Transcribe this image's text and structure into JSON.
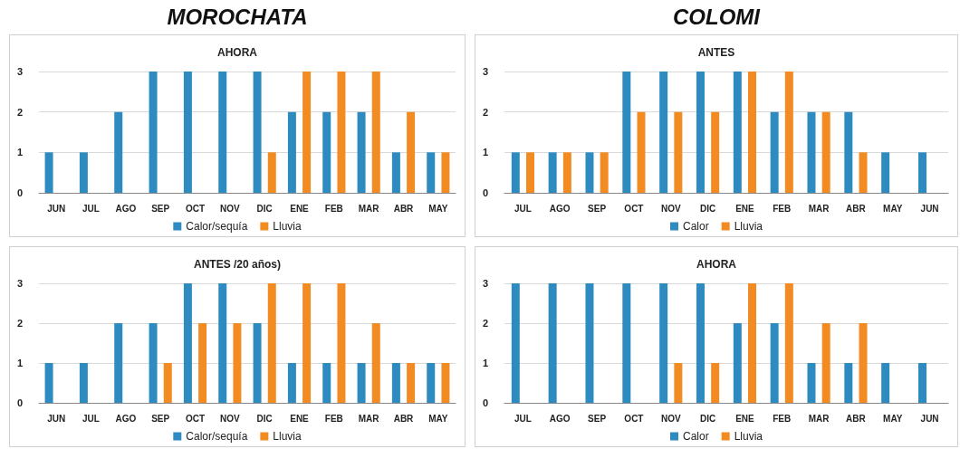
{
  "chart_data": [
    {
      "type": "bar",
      "title": "AHORA",
      "annotations": [
        "MOROCHATA"
      ],
      "categories": [
        "JUN",
        "JUL",
        "AGO",
        "SEP",
        "OCT",
        "NOV",
        "DIC",
        "ENE",
        "FEB",
        "MAR",
        "ABR",
        "MAY"
      ],
      "series": [
        {
          "name": "Calor/sequía",
          "color": "#2e8bc0",
          "values": [
            1,
            1,
            2,
            3,
            3,
            3,
            3,
            2,
            2,
            2,
            1,
            1
          ]
        },
        {
          "name": "Lluvia",
          "color": "#f28b22",
          "values": [
            null,
            null,
            null,
            null,
            null,
            null,
            1,
            3,
            3,
            3,
            2,
            1
          ]
        }
      ],
      "ylim": [
        0,
        3
      ],
      "yticks": [
        0,
        1,
        2,
        3
      ],
      "grid": "y",
      "legend": "bottom"
    },
    {
      "type": "bar",
      "title": "ANTES",
      "annotations": [
        "COLOMI"
      ],
      "categories": [
        "JUL",
        "AGO",
        "SEP",
        "OCT",
        "NOV",
        "DIC",
        "ENE",
        "FEB",
        "MAR",
        "ABR",
        "MAY",
        "JUN"
      ],
      "series": [
        {
          "name": "Calor",
          "color": "#2e8bc0",
          "values": [
            1,
            1,
            1,
            3,
            3,
            3,
            3,
            2,
            2,
            2,
            1,
            1
          ]
        },
        {
          "name": "Lluvia",
          "color": "#f28b22",
          "values": [
            1,
            1,
            1,
            2,
            2,
            2,
            3,
            3,
            2,
            1,
            null,
            null
          ]
        }
      ],
      "ylim": [
        0,
        3
      ],
      "yticks": [
        0,
        1,
        2,
        3
      ],
      "grid": "y",
      "legend": "bottom"
    },
    {
      "type": "bar",
      "title": "ANTES /20 años)",
      "categories": [
        "JUN",
        "JUL",
        "AGO",
        "SEP",
        "OCT",
        "NOV",
        "DIC",
        "ENE",
        "FEB",
        "MAR",
        "ABR",
        "MAY"
      ],
      "series": [
        {
          "name": "Calor/sequía",
          "color": "#2e8bc0",
          "values": [
            1,
            1,
            2,
            2,
            3,
            3,
            2,
            1,
            1,
            1,
            1,
            1
          ]
        },
        {
          "name": "Lluvia",
          "color": "#f28b22",
          "values": [
            null,
            null,
            null,
            1,
            2,
            2,
            3,
            3,
            3,
            2,
            1,
            1
          ]
        }
      ],
      "ylim": [
        0,
        3
      ],
      "yticks": [
        0,
        1,
        2,
        3
      ],
      "grid": "y",
      "legend": "bottom"
    },
    {
      "type": "bar",
      "title": "AHORA",
      "categories": [
        "JUL",
        "AGO",
        "SEP",
        "OCT",
        "NOV",
        "DIC",
        "ENE",
        "FEB",
        "MAR",
        "ABR",
        "MAY",
        "JUN"
      ],
      "series": [
        {
          "name": "Calor",
          "color": "#2e8bc0",
          "values": [
            3,
            3,
            3,
            3,
            3,
            3,
            2,
            2,
            1,
            1,
            1,
            1
          ]
        },
        {
          "name": "Lluvia",
          "color": "#f28b22",
          "values": [
            null,
            null,
            null,
            null,
            1,
            1,
            3,
            3,
            2,
            2,
            null,
            null
          ]
        }
      ],
      "ylim": [
        0,
        3
      ],
      "yticks": [
        0,
        1,
        2,
        3
      ],
      "grid": "y",
      "legend": "bottom"
    }
  ]
}
